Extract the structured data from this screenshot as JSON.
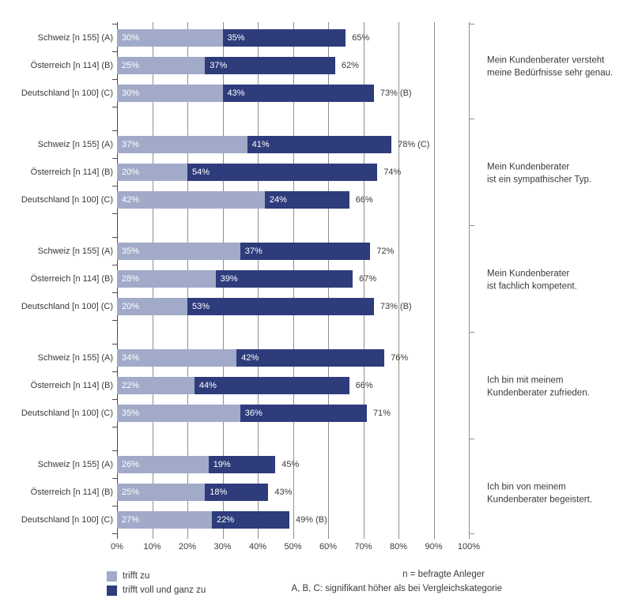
{
  "colors": {
    "light": "#a2aac9",
    "dark": "#2e3c7c",
    "grid": "#8f8f8f",
    "axis": "#4a4a4a",
    "text": "#3a3a3a"
  },
  "chart_data": {
    "type": "bar",
    "orientation": "horizontal",
    "stacked": true,
    "xlim": [
      0,
      100
    ],
    "x_ticks": [
      "0%",
      "10%",
      "20%",
      "30%",
      "40%",
      "50%",
      "60%",
      "70%",
      "80%",
      "90%",
      "100%"
    ],
    "series_names": [
      "trifft zu",
      "trifft voll und ganz zu"
    ],
    "categories": [
      "Schweiz [n 155] (A)",
      "Österreich [n 114] (B)",
      "Deutschland [n 100] (C)"
    ],
    "groups": [
      {
        "statement_lines": [
          "Mein Kundenberater versteht",
          "meine Bedürfnisse sehr genau."
        ],
        "rows": [
          {
            "trifft_zu": 30,
            "voll_und_ganz": 35,
            "total_label": "65%"
          },
          {
            "trifft_zu": 25,
            "voll_und_ganz": 37,
            "total_label": "62%"
          },
          {
            "trifft_zu": 30,
            "voll_und_ganz": 43,
            "total_label": "73% (B)"
          }
        ]
      },
      {
        "statement_lines": [
          "Mein Kundenberater",
          "ist ein sympathischer Typ."
        ],
        "rows": [
          {
            "trifft_zu": 37,
            "voll_und_ganz": 41,
            "total_label": "78% (C)"
          },
          {
            "trifft_zu": 20,
            "voll_und_ganz": 54,
            "total_label": "74%"
          },
          {
            "trifft_zu": 42,
            "voll_und_ganz": 24,
            "total_label": "66%"
          }
        ]
      },
      {
        "statement_lines": [
          "Mein Kundenberater",
          "ist fachlich kompetent."
        ],
        "rows": [
          {
            "trifft_zu": 35,
            "voll_und_ganz": 37,
            "total_label": "72%"
          },
          {
            "trifft_zu": 28,
            "voll_und_ganz": 39,
            "total_label": "67%"
          },
          {
            "trifft_zu": 20,
            "voll_und_ganz": 53,
            "total_label": "73% (B)"
          }
        ]
      },
      {
        "statement_lines": [
          "Ich bin mit meinem",
          "Kundenberater zufrieden."
        ],
        "rows": [
          {
            "trifft_zu": 34,
            "voll_und_ganz": 42,
            "total_label": "76%"
          },
          {
            "trifft_zu": 22,
            "voll_und_ganz": 44,
            "total_label": "66%"
          },
          {
            "trifft_zu": 35,
            "voll_und_ganz": 36,
            "total_label": "71%"
          }
        ]
      },
      {
        "statement_lines": [
          "Ich bin von meinem",
          "Kundenberater begeistert."
        ],
        "rows": [
          {
            "trifft_zu": 26,
            "voll_und_ganz": 19,
            "total_label": "45%"
          },
          {
            "trifft_zu": 25,
            "voll_und_ganz": 18,
            "total_label": "43%"
          },
          {
            "trifft_zu": 27,
            "voll_und_ganz": 22,
            "total_label": "49% (B)"
          }
        ]
      }
    ]
  },
  "legend": {
    "items": [
      {
        "label": "trifft zu",
        "color": "light"
      },
      {
        "label": "trifft voll und ganz zu",
        "color": "dark"
      }
    ]
  },
  "notes": {
    "n_note": "n = befragte Anleger",
    "sig_note": "A, B, C: signifikant höher als bei Vergleichskategorie"
  }
}
